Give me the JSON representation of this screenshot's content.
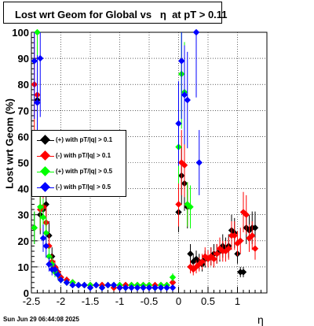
{
  "title": "Lost wrt Geom for Global vs   η  at pT > 0.11",
  "footer": "Sun Jun 29 06:44:08 2025",
  "chart_data": {
    "type": "scatter",
    "title": "Lost wrt Geom for Global vs   η  at pT > 0.11",
    "xlabel": "η",
    "ylabel": "Lost wrt Geom (%)",
    "xlim": [
      -2.5,
      1.5
    ],
    "ylim": [
      0,
      100
    ],
    "xticks": [
      "-2.5",
      "-2",
      "-1.5",
      "-1",
      "-0.5",
      "0",
      "0.5",
      "1"
    ],
    "yticks": [
      "0",
      "10",
      "20",
      "30",
      "40",
      "50",
      "60",
      "70",
      "80",
      "90",
      "100"
    ],
    "grid": true,
    "legend_position": "middle-left",
    "series": [
      {
        "name": "(+) with pT/|q| > 0.1",
        "color": "#000000",
        "x": [
          -2.45,
          -2.4,
          -2.35,
          -2.3,
          -2.25,
          -2.2,
          -2.15,
          -2.1,
          -2.05,
          -2.0,
          -1.9,
          -1.8,
          -1.7,
          -1.6,
          -1.5,
          -1.4,
          -1.3,
          -1.2,
          -1.1,
          -1.0,
          -0.9,
          -0.8,
          -0.7,
          -0.6,
          -0.5,
          -0.4,
          -0.3,
          -0.2,
          -0.1,
          0.0,
          0.05,
          0.1,
          0.15,
          0.2,
          0.25,
          0.3,
          0.35,
          0.4,
          0.45,
          0.5,
          0.55,
          0.6,
          0.65,
          0.7,
          0.75,
          0.8,
          0.85,
          0.9,
          0.95,
          1.0,
          1.05,
          1.1,
          1.15,
          1.2,
          1.25,
          1.3
        ],
        "y": [
          25,
          74,
          30,
          32,
          34,
          22,
          14,
          9,
          8,
          6,
          5,
          4,
          3,
          3,
          3,
          3,
          3,
          3,
          3,
          3,
          3,
          3,
          3,
          3,
          3,
          2,
          3,
          3,
          4,
          31,
          45,
          42,
          33,
          15,
          12,
          13,
          12,
          11,
          13,
          13,
          14,
          15,
          15,
          16,
          18,
          17,
          18,
          24,
          23,
          15,
          8,
          8,
          25,
          24,
          25,
          25
        ]
      },
      {
        "name": "(-) with pT/|q| > 0.1",
        "color": "#ff0000",
        "x": [
          -2.45,
          -2.4,
          -2.35,
          -2.3,
          -2.25,
          -2.2,
          -2.15,
          -2.1,
          -2.05,
          -2.0,
          -1.9,
          -1.8,
          -1.7,
          -1.6,
          -1.5,
          -1.4,
          -1.3,
          -1.2,
          -1.1,
          -1.0,
          -0.9,
          -0.8,
          -0.7,
          -0.6,
          -0.5,
          -0.4,
          -0.3,
          -0.2,
          -0.1,
          0.0,
          0.05,
          0.1,
          0.15,
          0.2,
          0.25,
          0.3,
          0.35,
          0.4,
          0.45,
          0.5,
          0.55,
          0.6,
          0.65,
          0.7,
          0.75,
          0.8,
          0.85,
          0.9,
          0.95,
          1.0,
          1.05,
          1.1,
          1.15,
          1.2,
          1.25,
          1.3
        ],
        "y": [
          80,
          76,
          32,
          33,
          27,
          18,
          12,
          10,
          8,
          6,
          5,
          4,
          3,
          3,
          3,
          3,
          3,
          3,
          2,
          2,
          3,
          3,
          3,
          3,
          3,
          3,
          3,
          3,
          4,
          34,
          50,
          49,
          34,
          10,
          9,
          10,
          11,
          12,
          14,
          13,
          14,
          13,
          15,
          17,
          16,
          16,
          17,
          22,
          22,
          19,
          20,
          31,
          30,
          21,
          22,
          17
        ]
      },
      {
        "name": "(+) with pT/|q| > 0.5",
        "color": "#00ff00",
        "x": [
          -2.45,
          -2.4,
          -2.35,
          -2.3,
          -2.25,
          -2.2,
          -2.15,
          -2.1,
          -2.05,
          -2.0,
          -1.9,
          -1.8,
          -1.7,
          -1.6,
          -1.5,
          -1.4,
          -1.3,
          -1.2,
          -1.1,
          -1.0,
          -0.9,
          -0.8,
          -0.7,
          -0.6,
          -0.5,
          -0.4,
          -0.3,
          -0.2,
          -0.1,
          0.0,
          0.05,
          0.1,
          0.15,
          0.2
        ],
        "y": [
          25,
          100,
          33,
          29,
          23,
          14,
          11,
          8,
          7,
          5,
          4,
          4,
          3,
          3,
          3,
          3,
          2,
          3,
          3,
          3,
          2,
          3,
          3,
          3,
          3,
          2,
          3,
          3,
          6,
          56,
          84,
          77,
          34,
          33
        ]
      },
      {
        "name": "(-) with pT/|q| > 0.5",
        "color": "#0000ff",
        "x": [
          -2.45,
          -2.4,
          -2.35,
          -2.3,
          -2.25,
          -2.2,
          -2.15,
          -2.1,
          -2.05,
          -2.0,
          -1.9,
          -1.8,
          -1.7,
          -1.6,
          -1.5,
          -1.4,
          -1.3,
          -1.2,
          -1.1,
          -1.0,
          -0.9,
          -0.8,
          -0.7,
          -0.6,
          -0.5,
          -0.4,
          -0.3,
          -0.2,
          -0.1,
          0.0,
          0.05,
          0.1,
          0.15,
          0.3,
          0.35
        ],
        "y": [
          89,
          73,
          90,
          21,
          18,
          11,
          9,
          9,
          7,
          5,
          4,
          3,
          3,
          3,
          2,
          3,
          2,
          3,
          3,
          2,
          2,
          2,
          2,
          2,
          2,
          2,
          2,
          2,
          2,
          65,
          89,
          76,
          74,
          100,
          50
        ]
      }
    ]
  }
}
